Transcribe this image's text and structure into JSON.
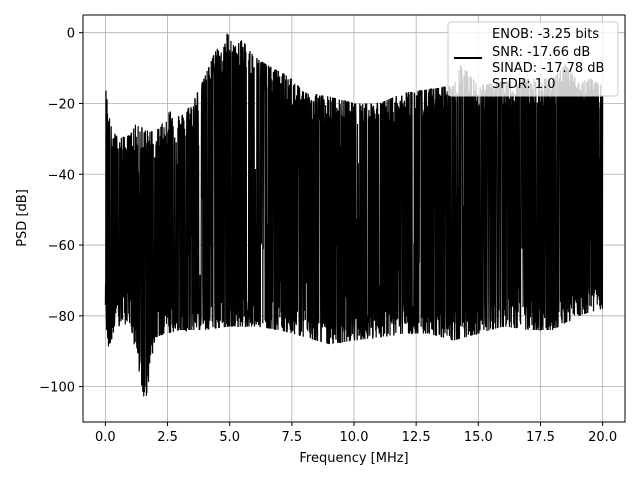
{
  "chart_data": {
    "type": "line",
    "title": "",
    "xlabel": "Frequency [MHz]",
    "ylabel": "PSD [dB]",
    "xlim": [
      -0.9,
      20.9
    ],
    "ylim": [
      -110,
      5
    ],
    "xticks": [
      0.0,
      2.5,
      5.0,
      7.5,
      10.0,
      12.5,
      15.0,
      17.5,
      20.0
    ],
    "xtick_labels": [
      "0.0",
      "2.5",
      "5.0",
      "7.5",
      "10.0",
      "12.5",
      "15.0",
      "17.5",
      "20.0"
    ],
    "yticks": [
      0,
      -20,
      -40,
      -60,
      -80,
      -100
    ],
    "ytick_labels": [
      "0",
      "−20",
      "−40",
      "−60",
      "−80",
      "−100"
    ],
    "grid": true,
    "legend_position": "top-right",
    "legend_lines": [
      "ENOB: -3.25 bits",
      "SNR: -17.66 dB",
      "SINAD: -17.78 dB",
      "SFDR: 1.0"
    ],
    "line_color": "#000000",
    "series": [
      {
        "x_start": 0.0,
        "x_end": 20.0,
        "upper_envelope_db": [
          [
            0.0,
            -15
          ],
          [
            0.2,
            -26
          ],
          [
            0.5,
            -30
          ],
          [
            1.0,
            -29
          ],
          [
            1.2,
            -26
          ],
          [
            1.8,
            -28
          ],
          [
            2.2,
            -27
          ],
          [
            2.6,
            -22
          ],
          [
            3.0,
            -24
          ],
          [
            3.5,
            -20
          ],
          [
            3.9,
            -14
          ],
          [
            4.2,
            -9
          ],
          [
            4.5,
            -4
          ],
          [
            4.7,
            -6
          ],
          [
            4.9,
            0
          ],
          [
            5.2,
            -4
          ],
          [
            5.5,
            -2
          ],
          [
            6.0,
            -7
          ],
          [
            6.5,
            -9
          ],
          [
            7.0,
            -11
          ],
          [
            7.5,
            -13
          ],
          [
            8.0,
            -17
          ],
          [
            9.0,
            -18
          ],
          [
            10.0,
            -20
          ],
          [
            11.0,
            -20
          ],
          [
            12.0,
            -17
          ],
          [
            13.0,
            -16
          ],
          [
            14.0,
            -15
          ],
          [
            14.3,
            -9
          ],
          [
            15.0,
            -15
          ],
          [
            16.0,
            -14
          ],
          [
            17.0,
            -13
          ],
          [
            18.0,
            -13
          ],
          [
            18.5,
            -9
          ],
          [
            19.0,
            -14
          ],
          [
            19.5,
            -13
          ],
          [
            20.0,
            -15
          ]
        ],
        "lower_envelope_db": [
          [
            0.0,
            -78
          ],
          [
            0.1,
            -89
          ],
          [
            0.5,
            -83
          ],
          [
            1.0,
            -82
          ],
          [
            1.6,
            -105
          ],
          [
            2.0,
            -86
          ],
          [
            3.0,
            -84
          ],
          [
            4.0,
            -84
          ],
          [
            5.0,
            -83
          ],
          [
            6.0,
            -83
          ],
          [
            7.0,
            -84
          ],
          [
            8.0,
            -86
          ],
          [
            9.0,
            -88
          ],
          [
            10.0,
            -87
          ],
          [
            11.0,
            -86
          ],
          [
            12.0,
            -85
          ],
          [
            13.0,
            -85
          ],
          [
            14.0,
            -87
          ],
          [
            15.0,
            -85
          ],
          [
            16.0,
            -83
          ],
          [
            17.0,
            -84
          ],
          [
            18.0,
            -84
          ],
          [
            19.0,
            -80
          ],
          [
            20.0,
            -78
          ]
        ],
        "typical_band_db": [
          -75,
          -30
        ]
      }
    ]
  }
}
